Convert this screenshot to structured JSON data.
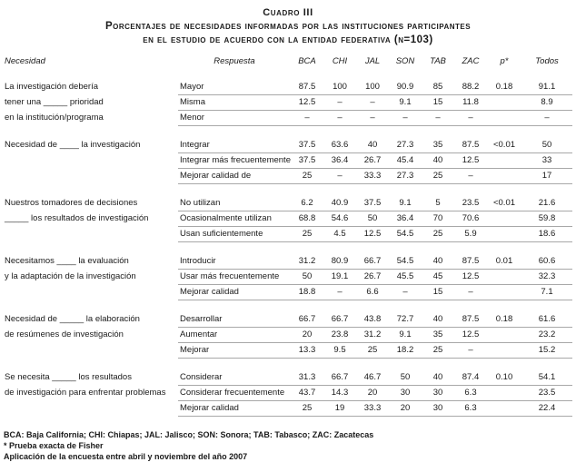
{
  "title": "Cuadro III",
  "subtitle": {
    "line1": "Porcentajes de necesidades informadas por las instituciones participantes",
    "line2": "en el estudio de acuerdo con la entidad federativa (n=103)"
  },
  "table": {
    "columns": [
      "Necesidad",
      "Respuesta",
      "BCA",
      "CHI",
      "JAL",
      "SON",
      "TAB",
      "ZAC",
      "p*",
      "Todos"
    ],
    "groups": [
      {
        "rows": [
          {
            "necesidad": "La investigación debería",
            "respuesta": "Mayor",
            "values": [
              "87.5",
              "100",
              "100",
              "90.9",
              "85",
              "88.2",
              "0.18",
              "91.1"
            ]
          },
          {
            "necesidad": "tener una _____ prioridad",
            "respuesta": "Misma",
            "values": [
              "12.5",
              "–",
              "–",
              "9.1",
              "15",
              "11.8",
              "",
              "8.9"
            ]
          },
          {
            "necesidad": "en la institución/programa",
            "respuesta": "Menor",
            "values": [
              "–",
              "–",
              "–",
              "–",
              "–",
              "–",
              "",
              "–"
            ]
          }
        ]
      },
      {
        "rows": [
          {
            "necesidad": "Necesidad de ____ la investigación",
            "respuesta": "Integrar",
            "values": [
              "37.5",
              "63.6",
              "40",
              "27.3",
              "35",
              "87.5",
              "<0.01",
              "50"
            ]
          },
          {
            "necesidad": "",
            "respuesta": "Integrar más frecuentemente",
            "values": [
              "37.5",
              "36.4",
              "26.7",
              "45.4",
              "40",
              "12.5",
              "",
              "33"
            ]
          },
          {
            "necesidad": "",
            "respuesta": "Mejorar calidad de",
            "values": [
              "25",
              "–",
              "33.3",
              "27.3",
              "25",
              "–",
              "",
              "17"
            ]
          }
        ]
      },
      {
        "rows": [
          {
            "necesidad": "Nuestros tomadores de decisiones",
            "respuesta": "No utilizan",
            "values": [
              "6.2",
              "40.9",
              "37.5",
              "9.1",
              "5",
              "23.5",
              "<0.01",
              "21.6"
            ]
          },
          {
            "necesidad": "_____ los resultados de investigación",
            "respuesta": "Ocasionalmente utilizan",
            "values": [
              "68.8",
              "54.6",
              "50",
              "36.4",
              "70",
              "70.6",
              "",
              "59.8"
            ]
          },
          {
            "necesidad": "",
            "respuesta": "Usan suficientemente",
            "values": [
              "25",
              "4.5",
              "12.5",
              "54.5",
              "25",
              "5.9",
              "",
              "18.6"
            ]
          }
        ]
      },
      {
        "rows": [
          {
            "necesidad": "Necesitamos ____ la evaluación",
            "respuesta": "Introducir",
            "values": [
              "31.2",
              "80.9",
              "66.7",
              "54.5",
              "40",
              "87.5",
              "0.01",
              "60.6"
            ]
          },
          {
            "necesidad": "y la adaptación de la investigación",
            "respuesta": "Usar más frecuentemente",
            "values": [
              "50",
              "19.1",
              "26.7",
              "45.5",
              "45",
              "12.5",
              "",
              "32.3"
            ]
          },
          {
            "necesidad": "",
            "respuesta": "Mejorar calidad",
            "values": [
              "18.8",
              "–",
              "6.6",
              "–",
              "15",
              "–",
              "",
              "7.1"
            ]
          }
        ]
      },
      {
        "rows": [
          {
            "necesidad": "Necesidad de _____ la elaboración",
            "respuesta": "Desarrollar",
            "values": [
              "66.7",
              "66.7",
              "43.8",
              "72.7",
              "40",
              "87.5",
              "0.18",
              "61.6"
            ]
          },
          {
            "necesidad": "de resúmenes de investigación",
            "respuesta": "Aumentar",
            "values": [
              "20",
              "23.8",
              "31.2",
              "9.1",
              "35",
              "12.5",
              "",
              "23.2"
            ]
          },
          {
            "necesidad": "",
            "respuesta": "Mejorar",
            "values": [
              "13.3",
              "9.5",
              "25",
              "18.2",
              "25",
              "–",
              "",
              "15.2"
            ]
          }
        ]
      },
      {
        "rows": [
          {
            "necesidad": "Se necesita _____ los resultados",
            "respuesta": "Considerar",
            "values": [
              "31.3",
              "66.7",
              "46.7",
              "50",
              "40",
              "87.4",
              "0.10",
              "54.1"
            ]
          },
          {
            "necesidad": "de investigación para enfrentar problemas",
            "respuesta": "Considerar frecuentemente",
            "values": [
              "43.7",
              "14.3",
              "20",
              "30",
              "30",
              "6.3",
              "",
              "23.5"
            ]
          },
          {
            "necesidad": "",
            "respuesta": "Mejorar calidad",
            "values": [
              "25",
              "19",
              "33.3",
              "20",
              "30",
              "6.3",
              "",
              "22.4"
            ]
          }
        ]
      }
    ]
  },
  "footnotes": [
    "BCA: Baja California; CHI: Chiapas; JAL: Jalisco; SON: Sonora; TAB: Tabasco; ZAC: Zacatecas",
    "* Prueba exacta de Fisher",
    "Aplicación de la encuesta entre abril y noviembre del año 2007"
  ]
}
